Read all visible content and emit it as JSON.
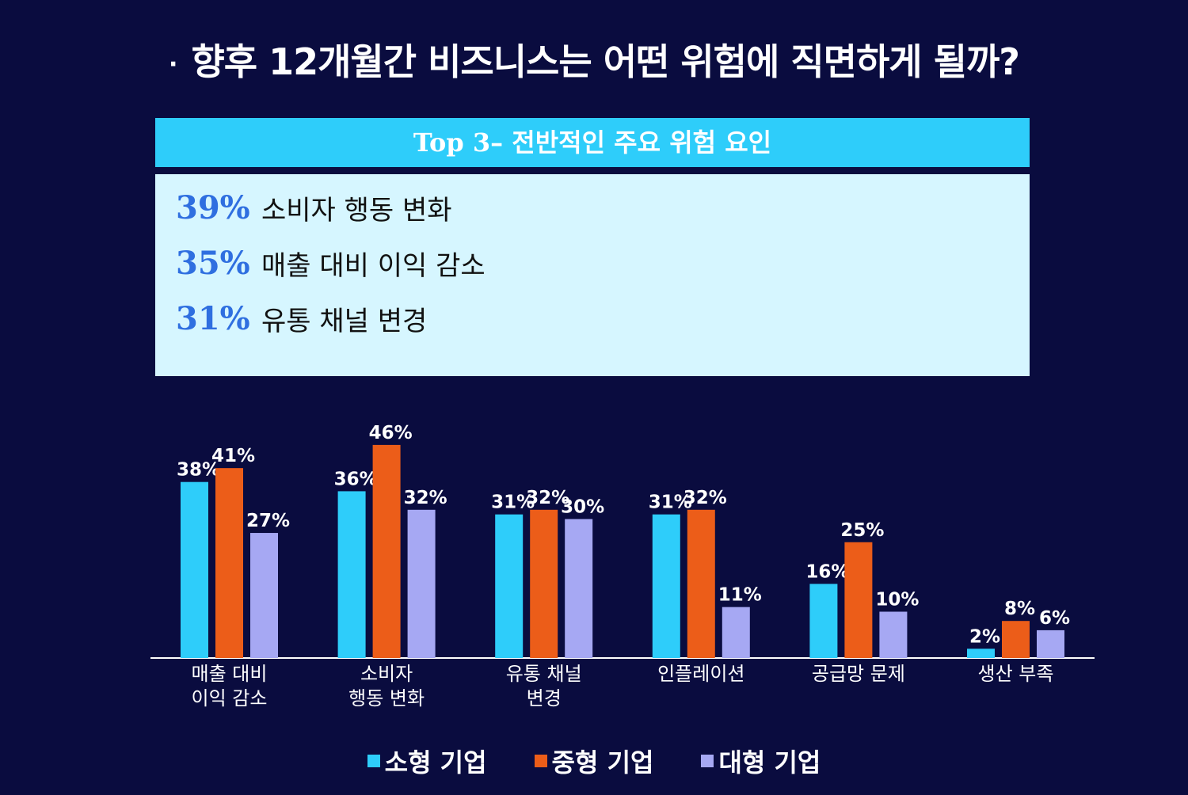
{
  "title": {
    "bullet": "·",
    "text": "향후 12개월간 비즈니스는 어떤 위험에 직면하게 될까?"
  },
  "top3": {
    "header_prefix": "Top 3–",
    "header_title": "전반적인 주요 위험 요인",
    "items": [
      {
        "pct": "39%",
        "label": "소비자 행동 변화"
      },
      {
        "pct": "35%",
        "label": "매출 대비 이익 감소"
      },
      {
        "pct": "31%",
        "label": "유통 채널 변경"
      }
    ]
  },
  "colors": {
    "background": "#0a0c3f",
    "small": "#2ecdfa",
    "medium": "#ec5d19",
    "large": "#a6a8f3",
    "top3_header": "#2ecdfa",
    "top3_box": "#d6f6ff",
    "pct_text": "#2f6fe0"
  },
  "chart_data": {
    "type": "bar",
    "categories": [
      [
        "매출 대비",
        "이익 감소"
      ],
      [
        "소비자",
        "행동 변화"
      ],
      [
        "유통 채널",
        "변경"
      ],
      [
        "인플레이션"
      ],
      [
        "공급망 문제"
      ],
      [
        "생산 부족"
      ]
    ],
    "series": [
      {
        "name": "소형 기업",
        "values": [
          38,
          36,
          31,
          31,
          16,
          2
        ],
        "color": "#2ecdfa"
      },
      {
        "name": "중형 기업",
        "values": [
          41,
          46,
          32,
          32,
          25,
          8
        ],
        "color": "#ec5d19"
      },
      {
        "name": "대형 기업",
        "values": [
          27,
          32,
          30,
          11,
          10,
          6
        ],
        "color": "#a6a8f3"
      }
    ],
    "value_suffix": "%",
    "ylim": [
      0,
      50
    ],
    "grid": false,
    "legend_position": "bottom"
  }
}
